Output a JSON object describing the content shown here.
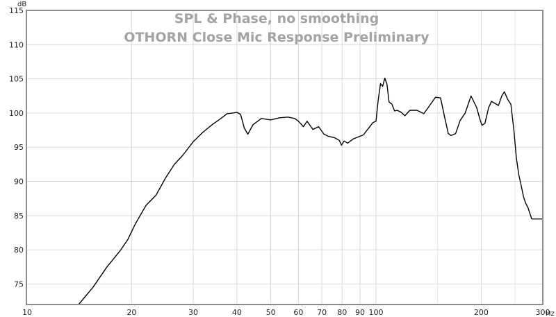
{
  "chart_data": {
    "type": "line",
    "title": "SPL & Phase, no smoothing",
    "subtitle": "OTHORN Close Mic Response Preliminary",
    "y_unit": "dB",
    "x_unit": "Hz",
    "x_scale": "log",
    "xlim": [
      10,
      300
    ],
    "ylim": [
      72,
      115
    ],
    "x_ticks": [
      10,
      20,
      30,
      40,
      50,
      60,
      70,
      80,
      90,
      100,
      200,
      300
    ],
    "x_tick_labels": [
      "10",
      "20",
      "30",
      "40",
      "50",
      "60",
      "70",
      "80",
      "90",
      "100",
      "200",
      "300"
    ],
    "x_minor_ticks": [
      150,
      250
    ],
    "y_ticks": [
      75,
      80,
      85,
      90,
      95,
      100,
      105,
      110,
      115
    ],
    "y_tick_labels": [
      "75",
      "80",
      "85",
      "90",
      "95",
      "100",
      "105",
      "110",
      "115"
    ],
    "grid": true,
    "series": [
      {
        "color": "#000000",
        "x": [
          14.1,
          15.5,
          17.0,
          18.5,
          19.5,
          20.5,
          22.0,
          23.5,
          25.0,
          26.5,
          28.0,
          30.0,
          32.0,
          34.0,
          36.0,
          37.5,
          39.0,
          40.0,
          41.0,
          42.0,
          43.0,
          44.5,
          47.0,
          50.0,
          53.0,
          56.0,
          58.5,
          60.0,
          62.0,
          63.5,
          66.0,
          68.5,
          71.0,
          73.0,
          76.0,
          78.5,
          79.7,
          81.0,
          83.0,
          86.0,
          89.0,
          92.0,
          95.0,
          98.0,
          100.0,
          101.5,
          103.0,
          104.5,
          106.0,
          107.5,
          109.0,
          111.0,
          113.0,
          115.0,
          118.0,
          121.0,
          125.0,
          131.0,
          137.0,
          142.0,
          148.0,
          153.0,
          157.0,
          161.0,
          164.0,
          169.0,
          174.0,
          180.0,
          187.0,
          194.0,
          198.5,
          201.0,
          205.0,
          210.0,
          214.0,
          219.0,
          224.0,
          229.0,
          233.0,
          238.0,
          243.0,
          248.0,
          252.0,
          256.0,
          260.0,
          264.0,
          268.0,
          272.0,
          276.0,
          279.0,
          283.0,
          287.0,
          291.0,
          295.0,
          300.0
        ],
        "values": [
          72.0,
          74.5,
          77.5,
          79.8,
          81.5,
          83.8,
          86.5,
          88.0,
          90.5,
          92.5,
          93.8,
          95.8,
          97.2,
          98.3,
          99.2,
          99.9,
          100.0,
          100.1,
          99.8,
          97.8,
          96.9,
          98.3,
          99.2,
          99.0,
          99.3,
          99.4,
          99.2,
          98.8,
          98.0,
          98.8,
          97.6,
          98.0,
          96.9,
          96.6,
          96.4,
          96.0,
          95.3,
          95.9,
          95.6,
          96.2,
          96.5,
          96.8,
          97.7,
          98.6,
          98.8,
          102.0,
          104.3,
          103.9,
          105.1,
          104.2,
          101.6,
          101.3,
          100.3,
          100.4,
          100.1,
          99.6,
          100.4,
          100.4,
          99.9,
          101.0,
          102.3,
          102.2,
          99.5,
          97.0,
          96.7,
          97.0,
          98.9,
          100.0,
          102.5,
          100.8,
          99.0,
          98.2,
          98.5,
          100.8,
          101.7,
          101.4,
          101.1,
          102.5,
          103.1,
          102.0,
          101.3,
          97.5,
          93.5,
          91.0,
          89.5,
          87.8,
          86.8,
          86.2,
          85.2,
          84.5,
          84.5,
          84.5,
          84.5,
          84.5,
          84.5
        ]
      }
    ]
  }
}
